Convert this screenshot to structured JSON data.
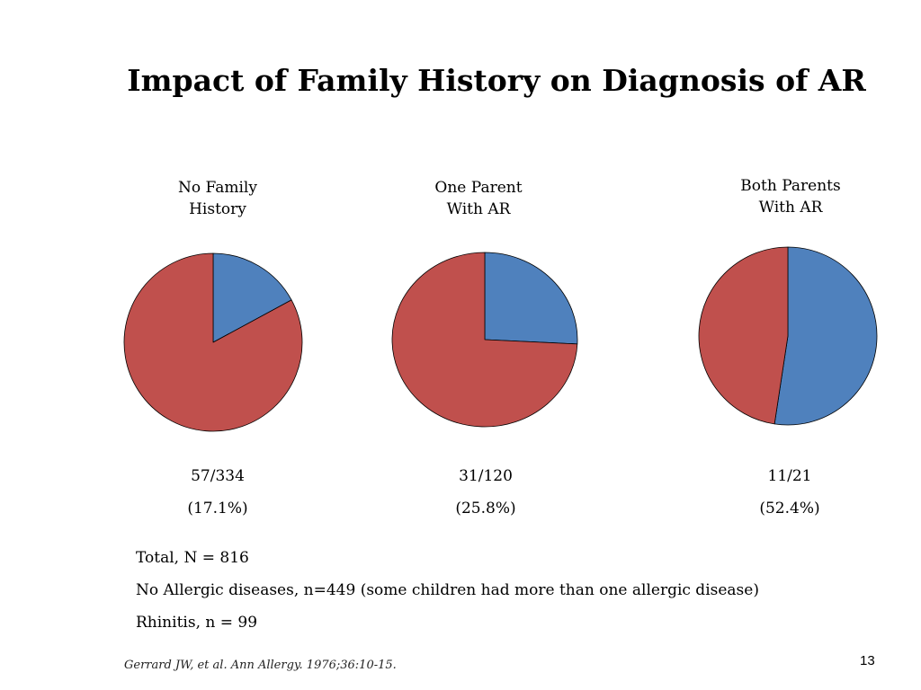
{
  "slide": {
    "title": "Impact of Family History on Diagnosis of AR",
    "notes": [
      "Total, N = 816",
      "No Allergic diseases, n=449 (some children had more than one allergic disease)",
      "Rhinitis, n = 99"
    ],
    "citation": "Gerrard JW, et al. Ann Allergy. 1976;36:10-15.",
    "page_number": "13"
  },
  "chart_data": [
    {
      "type": "pie",
      "title_lines": [
        "No Family",
        "History"
      ],
      "fraction_text": "57/334",
      "percent_text": "(17.1%)",
      "slices": [
        {
          "value": 17.1,
          "color": "#4F81BD"
        },
        {
          "value": 82.9,
          "color": "#C0504D"
        }
      ]
    },
    {
      "type": "pie",
      "title_lines": [
        "One Parent",
        "With AR"
      ],
      "fraction_text": "31/120",
      "percent_text": "(25.8%)",
      "slices": [
        {
          "value": 25.8,
          "color": "#4F81BD"
        },
        {
          "value": 74.2,
          "color": "#C0504D"
        }
      ]
    },
    {
      "type": "pie",
      "title_lines": [
        "Both Parents",
        "With AR"
      ],
      "fraction_text": "11/21",
      "percent_text": "(52.4%)",
      "slices": [
        {
          "value": 52.4,
          "color": "#4F81BD"
        },
        {
          "value": 47.6,
          "color": "#C0504D"
        }
      ]
    }
  ]
}
